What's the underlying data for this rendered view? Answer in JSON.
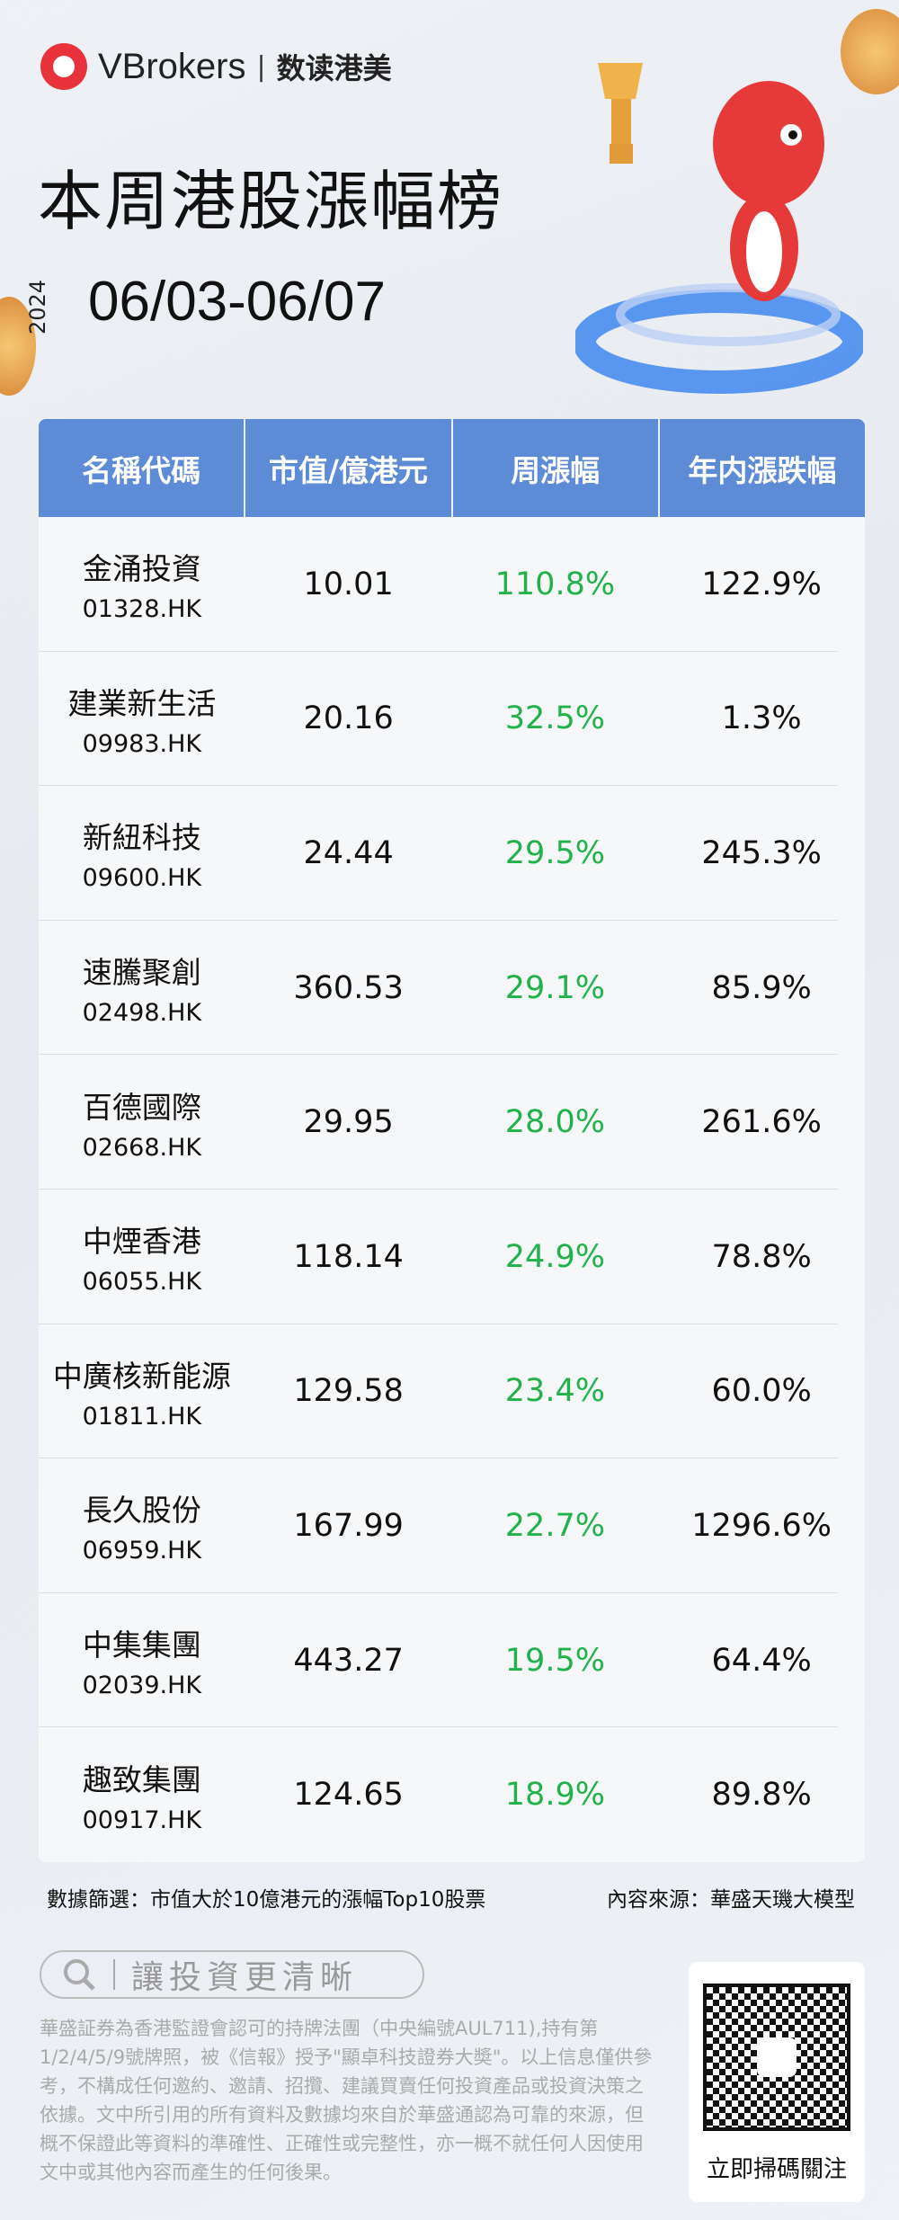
{
  "header": {
    "brand": "VBrokers",
    "divider": "|",
    "brand_cn": "数读港美",
    "title": "本周港股漲幅榜",
    "year": "2024",
    "date_range": "06/03-06/07"
  },
  "table": {
    "columns": [
      "名稱代碼",
      "市值/億港元",
      "周漲幅",
      "年内漲跌幅"
    ],
    "rows": [
      {
        "name": "金涌投資",
        "code": "01328.HK",
        "mcap": "10.01",
        "week": "110.8%",
        "ytd": "122.9%"
      },
      {
        "name": "建業新生活",
        "code": "09983.HK",
        "mcap": "20.16",
        "week": "32.5%",
        "ytd": "1.3%"
      },
      {
        "name": "新紐科技",
        "code": "09600.HK",
        "mcap": "24.44",
        "week": "29.5%",
        "ytd": "245.3%"
      },
      {
        "name": "速騰聚創",
        "code": "02498.HK",
        "mcap": "360.53",
        "week": "29.1%",
        "ytd": "85.9%"
      },
      {
        "name": "百德國際",
        "code": "02668.HK",
        "mcap": "29.95",
        "week": "28.0%",
        "ytd": "261.6%"
      },
      {
        "name": "中煙香港",
        "code": "06055.HK",
        "mcap": "118.14",
        "week": "24.9%",
        "ytd": "78.8%"
      },
      {
        "name": "中廣核新能源",
        "code": "01811.HK",
        "mcap": "129.58",
        "week": "23.4%",
        "ytd": "60.0%"
      },
      {
        "name": "長久股份",
        "code": "06959.HK",
        "mcap": "167.99",
        "week": "22.7%",
        "ytd": "1296.6%"
      },
      {
        "name": "中集集團",
        "code": "02039.HK",
        "mcap": "443.27",
        "week": "19.5%",
        "ytd": "64.4%"
      },
      {
        "name": "趣致集團",
        "code": "00917.HK",
        "mcap": "124.65",
        "week": "18.9%",
        "ytd": "89.8%"
      }
    ]
  },
  "footer": {
    "filter": "數據篩選：市值大於10億港元的漲幅Top10股票",
    "source": "內容來源：華盛天璣大模型",
    "search_text": "讓投資更清晰",
    "disclaimer": "華盛証券為香港監證會認可的持牌法團（中央編號AUL711),持有第1/2/4/5/9號牌照，被《信報》授予\"顯卓科技證券大奬\"。以上信息僅供參考，不構成任何邀約、邀請、招攬、建議買賣任何投資產品或投資決策之依據。文中所引用的所有資料及數據均來自於華盛通認為可靠的來源，但概不保證此等資料的準確性、正確性或完整性，亦一概不就任何人因使用文中或其他內容而產生的任何後果。",
    "qr_label": "立即掃碼關注"
  },
  "colors": {
    "header_blue": "#5e8bd6",
    "up_green": "#22b24c",
    "brand_red": "#e8323c"
  },
  "icons": {
    "search": "search-icon",
    "mascot": "dragon-mascot-with-trophy",
    "qr": "qr-code"
  }
}
